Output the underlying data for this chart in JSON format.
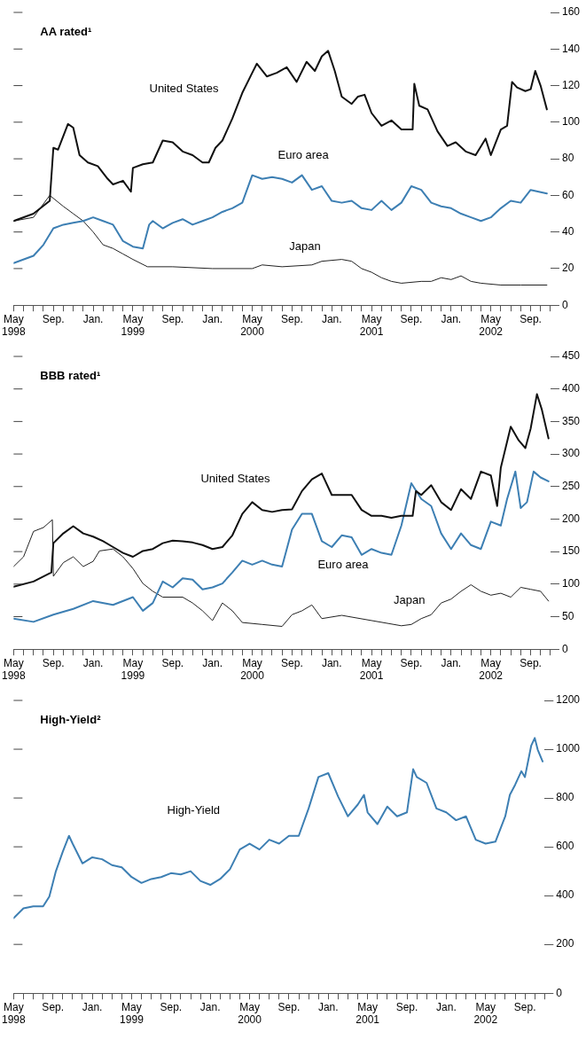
{
  "chart_data": [
    {
      "type": "line",
      "title": "AA rated¹",
      "legend": false,
      "grid": false,
      "xlim": [
        "1998-05",
        "2002-11"
      ],
      "ylim": [
        0,
        160
      ],
      "yticks": [
        0,
        20,
        40,
        60,
        80,
        100,
        120,
        140,
        160
      ],
      "xticks": [
        {
          "value": "1998-05",
          "label": "May\n1998"
        },
        {
          "value": "1998-06",
          "label": null
        },
        {
          "value": "1998-07",
          "label": null
        },
        {
          "value": "1998-08",
          "label": null
        },
        {
          "value": "1998-09",
          "label": "Sep."
        },
        {
          "value": "1998-10",
          "label": null
        },
        {
          "value": "1998-11",
          "label": null
        },
        {
          "value": "1998-12",
          "label": null
        },
        {
          "value": "1999-01",
          "label": "Jan."
        },
        {
          "value": "1999-02",
          "label": null
        },
        {
          "value": "1999-03",
          "label": null
        },
        {
          "value": "1999-04",
          "label": null
        },
        {
          "value": "1999-05",
          "label": "May\n1999"
        },
        {
          "value": "1999-06",
          "label": null
        },
        {
          "value": "1999-07",
          "label": null
        },
        {
          "value": "1999-08",
          "label": null
        },
        {
          "value": "1999-09",
          "label": "Sep."
        },
        {
          "value": "1999-10",
          "label": null
        },
        {
          "value": "1999-11",
          "label": null
        },
        {
          "value": "1999-12",
          "label": null
        },
        {
          "value": "2000-01",
          "label": "Jan."
        },
        {
          "value": "2000-02",
          "label": null
        },
        {
          "value": "2000-03",
          "label": null
        },
        {
          "value": "2000-04",
          "label": null
        },
        {
          "value": "2000-05",
          "label": "May\n2000"
        },
        {
          "value": "2000-06",
          "label": null
        },
        {
          "value": "2000-07",
          "label": null
        },
        {
          "value": "2000-08",
          "label": null
        },
        {
          "value": "2000-09",
          "label": "Sep."
        },
        {
          "value": "2000-10",
          "label": null
        },
        {
          "value": "2000-11",
          "label": null
        },
        {
          "value": "2000-12",
          "label": null
        },
        {
          "value": "2001-01",
          "label": "Jan."
        },
        {
          "value": "2001-02",
          "label": null
        },
        {
          "value": "2001-03",
          "label": null
        },
        {
          "value": "2001-04",
          "label": null
        },
        {
          "value": "2001-05",
          "label": "May\n2001"
        },
        {
          "value": "2001-06",
          "label": null
        },
        {
          "value": "2001-07",
          "label": null
        },
        {
          "value": "2001-08",
          "label": null
        },
        {
          "value": "2001-09",
          "label": "Sep."
        },
        {
          "value": "2001-10",
          "label": null
        },
        {
          "value": "2001-11",
          "label": null
        },
        {
          "value": "2001-12",
          "label": null
        },
        {
          "value": "2002-01",
          "label": "Jan."
        },
        {
          "value": "2002-02",
          "label": null
        },
        {
          "value": "2002-03",
          "label": null
        },
        {
          "value": "2002-04",
          "label": null
        },
        {
          "value": "2002-05",
          "label": "May\n2002"
        },
        {
          "value": "2002-06",
          "label": null
        },
        {
          "value": "2002-07",
          "label": null
        },
        {
          "value": "2002-08",
          "label": null
        },
        {
          "value": "2002-09",
          "label": "Sep."
        },
        {
          "value": "2002-10",
          "label": null
        },
        {
          "value": "2002-11",
          "label": null
        }
      ],
      "series": [
        {
          "name": "United States",
          "color": "#111111",
          "x": [
            "1998-05",
            "1998-07",
            "1998-08-20",
            "1998-09-01",
            "1998-09-15",
            "1998-10-15",
            "1998-11-01",
            "1998-11-20",
            "1998-12-15",
            "1999-01-15",
            "1999-02-15",
            "1999-03-01",
            "1999-04-01",
            "1999-04-25",
            "1999-05-01",
            "1999-06-01",
            "1999-07-01",
            "1999-08-01",
            "1999-09-01",
            "1999-10-01",
            "1999-11-01",
            "1999-12-01",
            "1999-12-20",
            "2000-01-10",
            "2000-02-01",
            "2000-03-01",
            "2000-04-01",
            "2000-05-01",
            "2000-05-15",
            "2000-06-15",
            "2000-07-15",
            "2000-08-15",
            "2000-09-15",
            "2000-10-15",
            "2000-11-10",
            "2000-12-01",
            "2000-12-20",
            "2001-01-10",
            "2001-02-01",
            "2001-03-01",
            "2001-03-20",
            "2001-04-10",
            "2001-05-01",
            "2001-06-01",
            "2001-07-01",
            "2001-08-01",
            "2001-09-05",
            "2001-09-10",
            "2001-09-25",
            "2001-10-20",
            "2001-11-20",
            "2001-12-20",
            "2002-01-15",
            "2002-02-15",
            "2002-03-15",
            "2002-04-15",
            "2002-05-01",
            "2002-06-01",
            "2002-06-20",
            "2002-07-05",
            "2002-07-20",
            "2002-08-15",
            "2002-09-01",
            "2002-09-15",
            "2002-10-01",
            "2002-10-20"
          ],
          "values": [
            46,
            50,
            57,
            86,
            85,
            99,
            97,
            82,
            78,
            76,
            69,
            66,
            68,
            62,
            75,
            77,
            78,
            90,
            89,
            84,
            82,
            78,
            78,
            86,
            90,
            102,
            116,
            127,
            132,
            125,
            127,
            130,
            122,
            133,
            128,
            136,
            139,
            128,
            114,
            110,
            114,
            115,
            105,
            98,
            101,
            96,
            96,
            121,
            109,
            107,
            95,
            87,
            89,
            84,
            82,
            91,
            82,
            96,
            98,
            122,
            119,
            117,
            118,
            128,
            120,
            107
          ]
        },
        {
          "name": "Euro area",
          "color": "#3d7fb3",
          "x": [
            "1998-05",
            "1998-07",
            "1998-08",
            "1998-09",
            "1998-10",
            "1998-11",
            "1998-12",
            "1999-01",
            "1999-02",
            "1999-03",
            "1999-04",
            "1999-05",
            "1999-06",
            "1999-06-20",
            "1999-07",
            "1999-08",
            "1999-09",
            "1999-10",
            "1999-11",
            "1999-12",
            "2000-01",
            "2000-02",
            "2000-03",
            "2000-04",
            "2000-05",
            "2000-06",
            "2000-07",
            "2000-08",
            "2000-09",
            "2000-10",
            "2000-11",
            "2000-12",
            "2001-01",
            "2001-02",
            "2001-03",
            "2001-04",
            "2001-05",
            "2001-06",
            "2001-07",
            "2001-08",
            "2001-09",
            "2001-10",
            "2001-11",
            "2001-12",
            "2002-01",
            "2002-02",
            "2002-03",
            "2002-04",
            "2002-05",
            "2002-06",
            "2002-07",
            "2002-08",
            "2002-09",
            "2002-10-20"
          ],
          "values": [
            23,
            27,
            33,
            42,
            44,
            45,
            46,
            48,
            46,
            44,
            35,
            32,
            31,
            44,
            46,
            42,
            45,
            47,
            44,
            46,
            48,
            51,
            53,
            56,
            71,
            69,
            70,
            69,
            67,
            71,
            63,
            65,
            57,
            56,
            57,
            53,
            52,
            57,
            52,
            56,
            65,
            63,
            56,
            54,
            53,
            50,
            48,
            46,
            48,
            53,
            57,
            56,
            63,
            61
          ]
        },
        {
          "name": "Japan",
          "color": "#222222",
          "x": [
            "1998-05",
            "1998-07",
            "1998-08-20",
            "1998-10",
            "1998-11",
            "1998-12",
            "1999-01",
            "1999-02",
            "1999-03",
            "1999-04",
            "1999-05",
            "1999-06-15",
            "1999-09",
            "2000-01",
            "2000-05",
            "2000-06",
            "2000-08",
            "2000-11",
            "2000-12",
            "2001-02",
            "2001-03",
            "2001-04",
            "2001-05",
            "2001-06",
            "2001-07",
            "2001-08",
            "2001-10",
            "2001-11",
            "2001-12",
            "2002-01",
            "2002-02",
            "2002-03",
            "2002-04",
            "2002-06",
            "2002-08",
            "2002-10-20"
          ],
          "values": [
            46,
            48,
            60,
            54,
            50,
            46,
            40,
            33,
            31,
            28,
            25,
            21,
            21,
            20,
            20,
            22,
            21,
            22,
            24,
            25,
            24,
            20,
            18,
            15,
            13,
            12,
            13,
            13,
            15,
            14,
            16,
            13,
            12,
            11,
            11,
            11
          ]
        }
      ]
    },
    {
      "type": "line",
      "title": "BBB rated¹",
      "legend": false,
      "grid": false,
      "xlim": [
        "1998-05",
        "2002-11"
      ],
      "ylim": [
        0,
        450
      ],
      "yticks": [
        0,
        50,
        100,
        150,
        200,
        250,
        300,
        350,
        400,
        450
      ],
      "xticks": [
        {
          "value": "1998-05",
          "label": "May\n1998"
        },
        {
          "value": "1998-06",
          "label": null
        },
        {
          "value": "1998-07",
          "label": null
        },
        {
          "value": "1998-08",
          "label": null
        },
        {
          "value": "1998-09",
          "label": "Sep."
        },
        {
          "value": "1998-10",
          "label": null
        },
        {
          "value": "1998-11",
          "label": null
        },
        {
          "value": "1998-12",
          "label": null
        },
        {
          "value": "1999-01",
          "label": "Jan."
        },
        {
          "value": "1999-02",
          "label": null
        },
        {
          "value": "1999-03",
          "label": null
        },
        {
          "value": "1999-04",
          "label": null
        },
        {
          "value": "1999-05",
          "label": "May\n1999"
        },
        {
          "value": "1999-06",
          "label": null
        },
        {
          "value": "1999-07",
          "label": null
        },
        {
          "value": "1999-08",
          "label": null
        },
        {
          "value": "1999-09",
          "label": "Sep."
        },
        {
          "value": "1999-10",
          "label": null
        },
        {
          "value": "1999-11",
          "label": null
        },
        {
          "value": "1999-12",
          "label": null
        },
        {
          "value": "2000-01",
          "label": "Jan."
        },
        {
          "value": "2000-02",
          "label": null
        },
        {
          "value": "2000-03",
          "label": null
        },
        {
          "value": "2000-04",
          "label": null
        },
        {
          "value": "2000-05",
          "label": "May\n2000"
        },
        {
          "value": "2000-06",
          "label": null
        },
        {
          "value": "2000-07",
          "label": null
        },
        {
          "value": "2000-08",
          "label": null
        },
        {
          "value": "2000-09",
          "label": "Sep."
        },
        {
          "value": "2000-10",
          "label": null
        },
        {
          "value": "2000-11",
          "label": null
        },
        {
          "value": "2000-12",
          "label": null
        },
        {
          "value": "2001-01",
          "label": "Jan."
        },
        {
          "value": "2001-02",
          "label": null
        },
        {
          "value": "2001-03",
          "label": null
        },
        {
          "value": "2001-04",
          "label": null
        },
        {
          "value": "2001-05",
          "label": "May\n2001"
        },
        {
          "value": "2001-06",
          "label": null
        },
        {
          "value": "2001-07",
          "label": null
        },
        {
          "value": "2001-08",
          "label": null
        },
        {
          "value": "2001-09",
          "label": "Sep."
        },
        {
          "value": "2001-10",
          "label": null
        },
        {
          "value": "2001-11",
          "label": null
        },
        {
          "value": "2001-12",
          "label": null
        },
        {
          "value": "2002-01",
          "label": "Jan."
        },
        {
          "value": "2002-02",
          "label": null
        },
        {
          "value": "2002-03",
          "label": null
        },
        {
          "value": "2002-04",
          "label": null
        },
        {
          "value": "2002-05",
          "label": "May\n2002"
        },
        {
          "value": "2002-06",
          "label": null
        },
        {
          "value": "2002-07",
          "label": null
        },
        {
          "value": "2002-08",
          "label": null
        },
        {
          "value": "2002-09",
          "label": "Sep."
        },
        {
          "value": "2002-10",
          "label": null
        },
        {
          "value": "2002-11",
          "label": null
        }
      ],
      "series": [
        {
          "name": "United States",
          "color": "#111111",
          "x": [
            "1998-05",
            "1998-07",
            "1998-08-25",
            "1998-09-01",
            "1998-10",
            "1998-11-01",
            "1998-12",
            "1999-01",
            "1999-02",
            "1999-03",
            "1999-04",
            "1999-05",
            "1999-06",
            "1999-07",
            "1999-08",
            "1999-09",
            "1999-10",
            "1999-11",
            "1999-12",
            "2000-01",
            "2000-02",
            "2000-03",
            "2000-04",
            "2000-05",
            "2000-06",
            "2000-07",
            "2000-08",
            "2000-09",
            "2000-10",
            "2000-11",
            "2000-12",
            "2001-01",
            "2001-02",
            "2001-03",
            "2001-04",
            "2001-05",
            "2001-06",
            "2001-07",
            "2001-08",
            "2001-09-05",
            "2001-09-15",
            "2001-10",
            "2001-11",
            "2001-12",
            "2002-01",
            "2002-02",
            "2002-03",
            "2002-04",
            "2002-05",
            "2002-05-20",
            "2002-06",
            "2002-07",
            "2002-07-25",
            "2002-08-15",
            "2002-09",
            "2002-09-20",
            "2002-10-05",
            "2002-10-25"
          ],
          "values": [
            96,
            104,
            118,
            163,
            178,
            189,
            178,
            173,
            166,
            157,
            148,
            142,
            151,
            154,
            163,
            167,
            166,
            164,
            160,
            154,
            157,
            175,
            208,
            226,
            214,
            211,
            214,
            215,
            243,
            261,
            270,
            237,
            237,
            237,
            214,
            205,
            205,
            202,
            205,
            205,
            243,
            237,
            252,
            226,
            214,
            246,
            231,
            273,
            267,
            220,
            279,
            342,
            321,
            309,
            339,
            392,
            368,
            324
          ]
        },
        {
          "name": "Euro area",
          "color": "#3d7fb3",
          "x": [
            "1998-05",
            "1998-07",
            "1998-09",
            "1998-11",
            "1999-01",
            "1999-03",
            "1999-05",
            "1999-06",
            "1999-07",
            "1999-08",
            "1999-09",
            "1999-10",
            "1999-11",
            "1999-12",
            "2000-01",
            "2000-02",
            "2000-03",
            "2000-04",
            "2000-05",
            "2000-06",
            "2000-07",
            "2000-08",
            "2000-09",
            "2000-10",
            "2000-11",
            "2000-12",
            "2001-01",
            "2001-02",
            "2001-03",
            "2001-04",
            "2001-05",
            "2001-06",
            "2001-07",
            "2001-08",
            "2001-09",
            "2001-10",
            "2001-11",
            "2001-12",
            "2002-01",
            "2002-02",
            "2002-03",
            "2002-04",
            "2002-05",
            "2002-06",
            "2002-06-20",
            "2002-07-15",
            "2002-08",
            "2002-08-20",
            "2002-09-10",
            "2002-10-01",
            "2002-10-25"
          ],
          "values": [
            47,
            42,
            53,
            62,
            74,
            68,
            80,
            59,
            71,
            104,
            95,
            109,
            107,
            92,
            95,
            101,
            118,
            136,
            130,
            136,
            130,
            127,
            184,
            208,
            208,
            166,
            157,
            175,
            172,
            145,
            154,
            148,
            145,
            190,
            255,
            231,
            220,
            178,
            154,
            178,
            160,
            154,
            196,
            190,
            231,
            273,
            217,
            226,
            273,
            264,
            258
          ]
        },
        {
          "name": "Japan",
          "color": "#222222",
          "x": [
            "1998-05",
            "1998-06",
            "1998-07",
            "1998-08",
            "1998-08-28",
            "1998-09-01",
            "1998-10",
            "1998-11",
            "1998-12",
            "1999-01",
            "1999-01-20",
            "1999-03",
            "1999-04",
            "1999-05",
            "1999-06",
            "1999-07",
            "1999-08",
            "1999-10",
            "1999-11",
            "1999-12",
            "2000-01",
            "2000-02",
            "2000-03",
            "2000-04",
            "2000-06",
            "2000-08",
            "2000-09",
            "2000-10",
            "2000-11",
            "2000-12",
            "2001-02",
            "2001-05",
            "2001-08",
            "2001-09",
            "2001-10",
            "2001-11",
            "2001-12",
            "2002-01",
            "2002-02",
            "2002-03",
            "2002-04",
            "2002-05",
            "2002-06",
            "2002-07",
            "2002-08",
            "2002-09",
            "2002-10",
            "2002-10-25"
          ],
          "values": [
            127,
            142,
            181,
            187,
            199,
            112,
            133,
            142,
            127,
            135,
            151,
            154,
            142,
            124,
            101,
            89,
            80,
            80,
            71,
            59,
            44,
            71,
            59,
            41,
            38,
            35,
            53,
            59,
            68,
            47,
            52,
            44,
            36,
            38,
            47,
            53,
            71,
            77,
            89,
            99,
            89,
            83,
            86,
            80,
            95,
            92,
            89,
            74
          ]
        }
      ]
    },
    {
      "type": "line",
      "title": "High-Yield²",
      "legend": false,
      "grid": false,
      "xlim": [
        "1998-05",
        "2002-11"
      ],
      "ylim": [
        0,
        1200
      ],
      "yticks": [
        0,
        200,
        400,
        600,
        800,
        1000,
        1200
      ],
      "xticks": [
        {
          "value": "1998-05",
          "label": "May\n1998"
        },
        {
          "value": "1998-06",
          "label": null
        },
        {
          "value": "1998-07",
          "label": null
        },
        {
          "value": "1998-08",
          "label": null
        },
        {
          "value": "1998-09",
          "label": "Sep."
        },
        {
          "value": "1998-10",
          "label": null
        },
        {
          "value": "1998-11",
          "label": null
        },
        {
          "value": "1998-12",
          "label": null
        },
        {
          "value": "1999-01",
          "label": "Jan."
        },
        {
          "value": "1999-02",
          "label": null
        },
        {
          "value": "1999-03",
          "label": null
        },
        {
          "value": "1999-04",
          "label": null
        },
        {
          "value": "1999-05",
          "label": "May\n1999"
        },
        {
          "value": "1999-06",
          "label": null
        },
        {
          "value": "1999-07",
          "label": null
        },
        {
          "value": "1999-08",
          "label": null
        },
        {
          "value": "1999-09",
          "label": "Sep."
        },
        {
          "value": "1999-10",
          "label": null
        },
        {
          "value": "1999-11",
          "label": null
        },
        {
          "value": "1999-12",
          "label": null
        },
        {
          "value": "2000-01",
          "label": "Jan."
        },
        {
          "value": "2000-02",
          "label": null
        },
        {
          "value": "2000-03",
          "label": null
        },
        {
          "value": "2000-04",
          "label": null
        },
        {
          "value": "2000-05",
          "label": "May\n2000"
        },
        {
          "value": "2000-06",
          "label": null
        },
        {
          "value": "2000-07",
          "label": null
        },
        {
          "value": "2000-08",
          "label": null
        },
        {
          "value": "2000-09",
          "label": "Sep."
        },
        {
          "value": "2000-10",
          "label": null
        },
        {
          "value": "2000-11",
          "label": null
        },
        {
          "value": "2000-12",
          "label": null
        },
        {
          "value": "2001-01",
          "label": "Jan."
        },
        {
          "value": "2001-02",
          "label": null
        },
        {
          "value": "2001-03",
          "label": null
        },
        {
          "value": "2001-04",
          "label": null
        },
        {
          "value": "2001-05",
          "label": "May\n2001"
        },
        {
          "value": "2001-06",
          "label": null
        },
        {
          "value": "2001-07",
          "label": null
        },
        {
          "value": "2001-08",
          "label": null
        },
        {
          "value": "2001-09",
          "label": "Sep."
        },
        {
          "value": "2001-10",
          "label": null
        },
        {
          "value": "2001-11",
          "label": null
        },
        {
          "value": "2001-12",
          "label": null
        },
        {
          "value": "2002-01",
          "label": "Jan."
        },
        {
          "value": "2002-02",
          "label": null
        },
        {
          "value": "2002-03",
          "label": null
        },
        {
          "value": "2002-04",
          "label": null
        },
        {
          "value": "2002-05",
          "label": "May\n2002"
        },
        {
          "value": "2002-06",
          "label": null
        },
        {
          "value": "2002-07",
          "label": null
        },
        {
          "value": "2002-08",
          "label": null
        },
        {
          "value": "2002-09",
          "label": "Sep."
        },
        {
          "value": "2002-10",
          "label": null
        },
        {
          "value": "2002-11",
          "label": null
        }
      ],
      "series": [
        {
          "name": "High-Yield",
          "color": "#3d7fb3",
          "x": [
            "1998-05",
            "1998-06",
            "1998-07",
            "1998-08",
            "1998-08-20",
            "1998-09-10",
            "1998-10",
            "1998-10-20",
            "1998-11",
            "1998-12",
            "1999-01",
            "1999-02",
            "1999-03",
            "1999-04",
            "1999-05",
            "1999-06",
            "1999-07",
            "1999-08",
            "1999-09",
            "1999-10",
            "1999-11",
            "1999-12",
            "2000-01",
            "2000-02",
            "2000-03",
            "2000-04",
            "2000-05",
            "2000-06",
            "2000-07",
            "2000-08",
            "2000-09",
            "2000-10",
            "2000-11",
            "2000-12",
            "2001-01",
            "2001-02",
            "2001-03",
            "2001-04",
            "2001-04-20",
            "2001-05",
            "2001-06",
            "2001-07",
            "2001-08",
            "2001-09",
            "2001-09-20",
            "2001-10",
            "2001-11",
            "2001-12",
            "2002-01",
            "2002-02",
            "2002-03",
            "2002-04",
            "2002-05",
            "2002-06",
            "2002-07",
            "2002-07-15",
            "2002-08",
            "2002-08-20",
            "2002-09",
            "2002-09-20",
            "2002-10-01",
            "2002-10-10",
            "2002-10-25"
          ],
          "values": [
            308,
            348,
            356,
            356,
            396,
            500,
            580,
            645,
            613,
            532,
            557,
            549,
            525,
            516,
            476,
            452,
            468,
            476,
            492,
            487,
            500,
            460,
            444,
            468,
            508,
            589,
            613,
            589,
            629,
            613,
            645,
            645,
            757,
            886,
            902,
            806,
            725,
            773,
            813,
            741,
            693,
            765,
            725,
            741,
            918,
            886,
            862,
            757,
            741,
            709,
            725,
            629,
            613,
            621,
            725,
            813,
            854,
            910,
            886,
            1014,
            1046,
            998,
            950
          ]
        }
      ]
    }
  ]
}
